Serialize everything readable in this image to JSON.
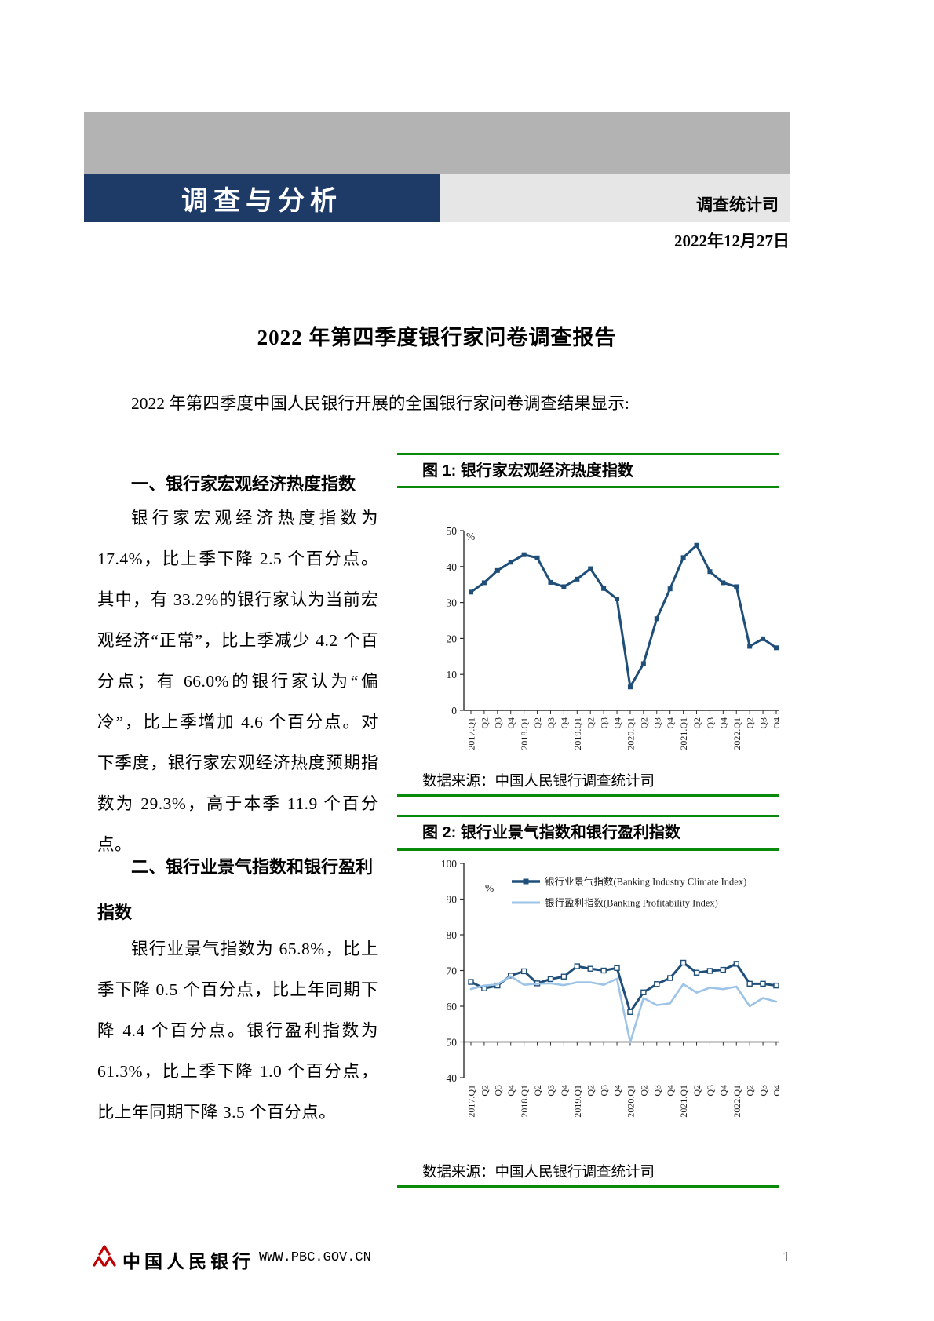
{
  "header": {
    "banner_title": "调查与分析",
    "department": "调查统计司",
    "date": "2022年12月27日"
  },
  "title": "2022 年第四季度银行家问卷调查报告",
  "intro": "2022 年第四季度中国人民银行开展的全国银行家问卷调查结果显示:",
  "section1": {
    "heading": "一、银行家宏观经济热度指数",
    "body": "银行家宏观经济热度指数为 17.4%，比上季下降 2.5 个百分点。其中，有 33.2%的银行家认为当前宏观经济“正常”，比上季减少 4.2 个百分点；有 66.0%的银行家认为“偏冷”，比上季增加 4.6 个百分点。对下季度，银行家宏观经济热度预期指数为 29.3%，高于本季 11.9 个百分点。"
  },
  "section2": {
    "heading": "二、银行业景气指数和银行盈利指数",
    "body": "银行业景气指数为 65.8%，比上季下降 0.5 个百分点，比上年同期下降 4.4 个百分点。银行盈利指数为 61.3%，比上季下降 1.0 个百分点，比上年同期下降 3.5 个百分点。"
  },
  "figure1": {
    "source": "数据来源：中国人民银行调查统计司"
  },
  "figure2": {
    "source": "数据来源：中国人民银行调查统计司"
  },
  "footer": {
    "bank_name": "中国人民银行",
    "website": "WWW.PBC.GOV.CN",
    "page_number": "1"
  },
  "colors": {
    "rule-green": "#0a8a0a",
    "banner-blue": "#1e3a66",
    "banner-gray": "#b3b3b3",
    "panel-gray": "#e7e6e6",
    "navy": "#1F4E79",
    "light-blue": "#9DC3E6",
    "logo-red": "#c00000"
  },
  "chart_data": [
    {
      "type": "line",
      "title": "图 1: 银行家宏观经济热度指数",
      "ylabel": "%",
      "ylim": [
        0,
        50
      ],
      "yticks": [
        0,
        10,
        20,
        30,
        40,
        50
      ],
      "grid": false,
      "legend": false,
      "categories": [
        "2017.Q1",
        "Q2",
        "Q3",
        "Q4",
        "2018.Q1",
        "Q2",
        "Q3",
        "Q4",
        "2019.Q1",
        "Q2",
        "Q3",
        "Q4",
        "2020.Q1",
        "Q2",
        "Q3",
        "Q4",
        "2021.Q1",
        "Q2",
        "Q3",
        "Q4",
        "2022.Q1",
        "Q2",
        "Q3",
        "Q4"
      ],
      "series": [
        {
          "name": "银行家宏观经济热度指数",
          "color": "#1F4E79",
          "marker": "square",
          "values": [
            32.9,
            35.5,
            38.9,
            41.2,
            43.3,
            42.4,
            35.6,
            34.4,
            36.5,
            39.4,
            33.9,
            31.0,
            6.5,
            13.0,
            25.5,
            33.8,
            42.5,
            45.9,
            38.6,
            35.5,
            34.4,
            17.8,
            19.9,
            17.4
          ]
        }
      ]
    },
    {
      "type": "line",
      "title": "图 2: 银行业景气指数和银行盈利指数",
      "ylabel": "%",
      "ylim": [
        40,
        100
      ],
      "yticks": [
        40,
        50,
        60,
        70,
        80,
        90,
        100
      ],
      "x_axis_at": 50,
      "grid": false,
      "legend_position": "upper-inside",
      "categories": [
        "2017.Q1",
        "Q2",
        "Q3",
        "Q4",
        "2018.Q1",
        "Q2",
        "Q3",
        "Q4",
        "2019.Q1",
        "Q2",
        "Q3",
        "Q4",
        "2020.Q1",
        "Q2",
        "Q3",
        "Q4",
        "2021.Q1",
        "Q2",
        "Q3",
        "Q4",
        "2022.Q1",
        "Q2",
        "Q3",
        "Q4"
      ],
      "series": [
        {
          "name": "银行业景气指数(Banking Industry Climate Index)",
          "color": "#1F4E79",
          "marker": "square-open",
          "values": [
            66.8,
            65.0,
            65.8,
            68.6,
            69.8,
            66.4,
            67.6,
            68.3,
            71.2,
            70.5,
            70.0,
            70.7,
            58.4,
            63.9,
            66.2,
            67.9,
            72.2,
            69.4,
            69.9,
            70.2,
            71.9,
            66.3,
            66.3,
            65.8
          ]
        },
        {
          "name": "银行盈利指数(Banking Profitability Index)",
          "color": "#9DC3E6",
          "marker": "none",
          "values": [
            64.8,
            65.8,
            66.1,
            68.4,
            66.0,
            66.3,
            66.4,
            65.9,
            66.7,
            66.7,
            66.0,
            67.7,
            49.9,
            62.3,
            60.3,
            60.8,
            66.2,
            63.8,
            65.2,
            64.8,
            65.5,
            60.0,
            62.3,
            61.3
          ]
        }
      ]
    }
  ]
}
